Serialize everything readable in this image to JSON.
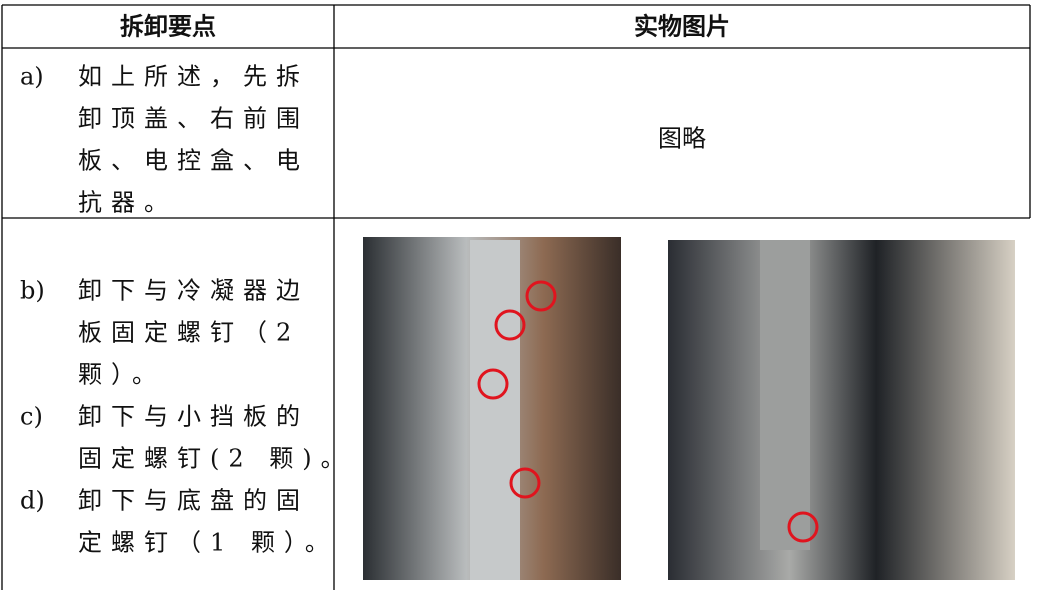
{
  "table": {
    "header": [
      "拆卸要点",
      "实物图片"
    ],
    "rows": [
      {
        "steps": [
          {
            "label": "a)",
            "lines": [
              "如上所述，先拆",
              "卸顶盖、右前围",
              "板、电控盒、电",
              "抗器。"
            ]
          }
        ],
        "picture": "图略"
      },
      {
        "steps": [
          {
            "label": "b)",
            "lines": [
              "卸下与冷凝器边",
              "板固定螺钉（2",
              "颗）。"
            ]
          },
          {
            "label": "c)",
            "lines": [
              "卸下与小挡板的",
              "固定螺钉(2 颗)。"
            ]
          },
          {
            "label": "d)",
            "lines": [
              "卸下与底盘的固",
              "定螺钉（1 颗）。"
            ]
          }
        ]
      }
    ]
  }
}
